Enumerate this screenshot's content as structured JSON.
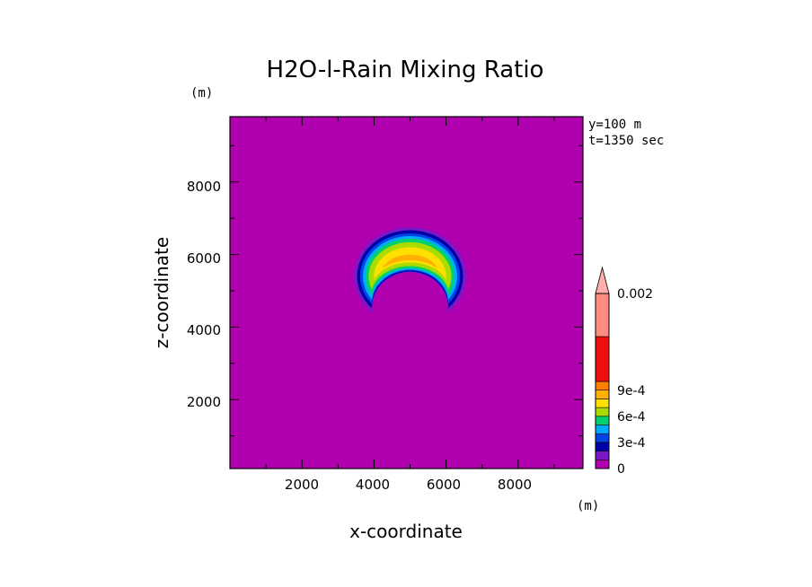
{
  "chart_data": {
    "type": "heatmap",
    "title": "H2O-l-Rain Mixing Ratio",
    "xlabel": "x-coordinate",
    "ylabel": "z-coordinate",
    "x_unit": "(m)",
    "y_unit": "(m)",
    "xlim": [
      0,
      9800
    ],
    "ylim": [
      100,
      9800
    ],
    "xticks": [
      "2000",
      "4000",
      "6000",
      "8000"
    ],
    "yticks": [
      "2000",
      "4000",
      "6000",
      "8000"
    ],
    "annotations": [
      "y=100 m",
      "t=1350 sec"
    ],
    "colorbar": {
      "labels": [
        "0.002",
        "9e-4",
        "6e-4",
        "3e-4",
        "0"
      ],
      "levels": [
        0,
        0.0001,
        0.0002,
        0.0003,
        0.0004,
        0.0005,
        0.0006,
        0.0007,
        0.0008,
        0.0009,
        0.001,
        0.0015,
        0.002
      ],
      "colors": [
        "#b000b0",
        "#7a18c8",
        "#0000a8",
        "#0046e6",
        "#00aaff",
        "#00d070",
        "#aadc00",
        "#ffe000",
        "#ffb000",
        "#ff8000",
        "#ee1010",
        "#ff8c80",
        "#ffb0aa"
      ]
    },
    "background_value": 0,
    "feature": {
      "description": "crescent-shaped rain region",
      "center_x": 5000,
      "center_z": 5400,
      "outer_radius_x": 1600,
      "outer_radius_z": 1300,
      "peak_value": 0.00095
    }
  }
}
